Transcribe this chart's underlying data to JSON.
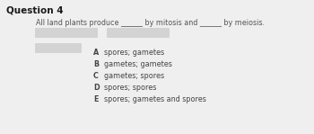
{
  "title": "Question 4",
  "question": "All land plants produce ______ by mitosis and ______ by meiosis.",
  "options": [
    {
      "label": "A",
      "text": "spores; gametes"
    },
    {
      "label": "B",
      "text": "gametes; gametes"
    },
    {
      "label": "C",
      "text": "gametes; spores"
    },
    {
      "label": "D",
      "text": "spores; spores"
    },
    {
      "label": "E",
      "text": "spores; gametes and spores"
    }
  ],
  "bg_color": "#efefef",
  "title_color": "#1a1a1a",
  "question_color": "#555555",
  "option_color": "#444444",
  "title_fontsize": 7.5,
  "question_fontsize": 5.8,
  "option_fontsize": 5.8,
  "label_fontsize": 5.8,
  "redacted_color": "#d3d3d3",
  "redacted_color2": "#d3d3d3"
}
